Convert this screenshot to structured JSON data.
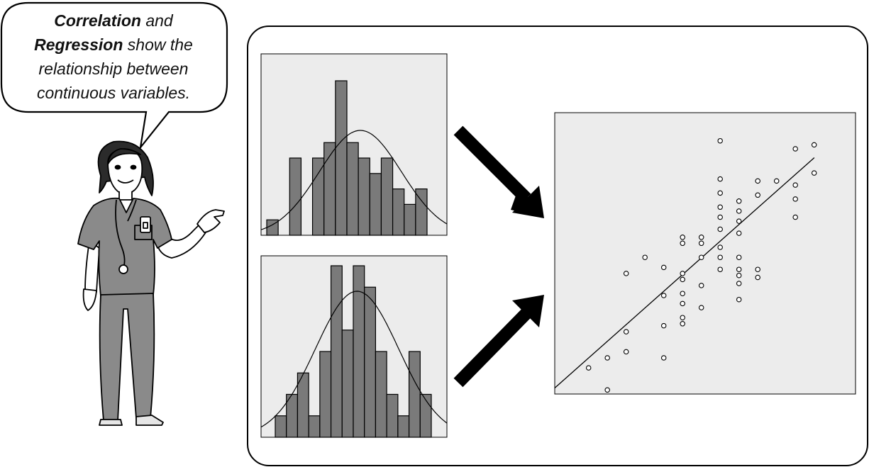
{
  "speech_bubble": {
    "line1_bold": "Correlation",
    "line1_rest": " and",
    "line2_bold": "Regression",
    "line2_rest": " show the",
    "line3": "relationship between",
    "line4": "continuous variables."
  },
  "colors": {
    "panel_bg": "#ececec",
    "bar_fill": "#7a7a7a",
    "stroke": "#000000",
    "scrubs": "#8a8a8a",
    "arrow": "#000000"
  },
  "icons": [
    "nurse-figure",
    "stethoscope-icon",
    "badge-icon",
    "arrow-down-right-icon",
    "arrow-up-right-icon"
  ],
  "chart_data": [
    {
      "type": "bar",
      "values": [
        1,
        0,
        5,
        0,
        5,
        6,
        10,
        6,
        5,
        4,
        5,
        3,
        2,
        3
      ],
      "overlay": "normal-curve",
      "grid": false
    },
    {
      "type": "bar",
      "values": [
        1,
        2,
        3,
        1,
        4,
        8,
        5,
        8,
        7,
        4,
        2,
        1,
        4,
        2
      ],
      "overlay": "normal-curve",
      "grid": false
    },
    {
      "type": "scatter",
      "xlim": [
        0,
        16
      ],
      "ylim": [
        0,
        14
      ],
      "points": [
        [
          1.8,
          1.3
        ],
        [
          2.8,
          1.8
        ],
        [
          2.8,
          0.2
        ],
        [
          3.8,
          3.1
        ],
        [
          3.8,
          2.1
        ],
        [
          3.8,
          6.0
        ],
        [
          4.8,
          6.8
        ],
        [
          5.8,
          1.8
        ],
        [
          5.8,
          3.4
        ],
        [
          5.8,
          4.9
        ],
        [
          5.8,
          6.3
        ],
        [
          6.8,
          3.8
        ],
        [
          6.8,
          3.5
        ],
        [
          6.8,
          4.5
        ],
        [
          6.8,
          5.0
        ],
        [
          6.8,
          5.7
        ],
        [
          6.8,
          6.0
        ],
        [
          6.8,
          7.5
        ],
        [
          6.8,
          7.8
        ],
        [
          7.8,
          4.3
        ],
        [
          7.8,
          5.4
        ],
        [
          7.8,
          6.8
        ],
        [
          7.8,
          7.5
        ],
        [
          7.8,
          7.8
        ],
        [
          8.8,
          6.2
        ],
        [
          8.8,
          6.8
        ],
        [
          8.8,
          7.3
        ],
        [
          8.8,
          8.2
        ],
        [
          8.8,
          8.8
        ],
        [
          8.8,
          9.3
        ],
        [
          8.8,
          10.0
        ],
        [
          8.8,
          10.7
        ],
        [
          8.8,
          12.6
        ],
        [
          9.8,
          4.7
        ],
        [
          9.8,
          5.5
        ],
        [
          9.8,
          5.9
        ],
        [
          9.8,
          6.2
        ],
        [
          9.8,
          6.8
        ],
        [
          9.8,
          8.0
        ],
        [
          9.8,
          8.6
        ],
        [
          9.8,
          9.1
        ],
        [
          9.8,
          9.6
        ],
        [
          10.8,
          5.8
        ],
        [
          10.8,
          6.2
        ],
        [
          10.8,
          9.9
        ],
        [
          10.8,
          10.6
        ],
        [
          11.8,
          10.6
        ],
        [
          12.8,
          8.8
        ],
        [
          12.8,
          9.7
        ],
        [
          12.8,
          10.4
        ],
        [
          12.8,
          12.2
        ],
        [
          13.8,
          11.0
        ],
        [
          13.8,
          12.4
        ]
      ],
      "fit_line": {
        "slope": 0.83,
        "intercept": 0.3
      },
      "grid": false
    }
  ]
}
